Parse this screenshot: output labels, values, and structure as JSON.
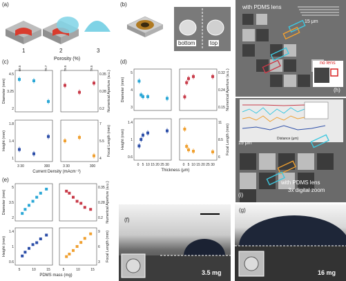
{
  "panels": {
    "a": {
      "label": "(a)",
      "steps": [
        "1",
        "2",
        "3"
      ]
    },
    "b": {
      "label": "(b)",
      "bottom": "bottom",
      "top": "top"
    },
    "c": {
      "label": "(c)",
      "top_axis": "Porosity (%)",
      "x_label": "Current Density (mAcm⁻²)",
      "y_top_left": "Diameter (mm)",
      "y_bot_left": "Height (mm)",
      "y_top_right": "Numerical Aperture (a.u.)",
      "y_bot_right": "Focal Length (mm)",
      "top_ticks": [
        "68.5",
        "78.7",
        "78.5",
        "78.5"
      ],
      "x_ticks": [
        "3 30",
        "300",
        "3 30",
        "300"
      ]
    },
    "d": {
      "label": "(d)",
      "x_label": "Thickness (μm)",
      "y_top_left": "Diameter (mm)",
      "y_bot_left": "Height (mm)",
      "y_top_right": "Numerical Aperture (a.u.)",
      "y_bot_right": "Focal Length (mm)",
      "x_ticks": [
        "0",
        "5",
        "10",
        "15",
        "20",
        "25",
        "30"
      ]
    },
    "e": {
      "label": "(e)",
      "x_label": "PDMS mass (mg)",
      "y_top_left": "Diameter (mm)",
      "y_bot_left": "Height (mm)",
      "y_top_right": "Numerical Aperture (a.u.)",
      "y_bot_right": "Focal Length (mm)",
      "x_ticks": [
        "5",
        "10",
        "15"
      ]
    },
    "f": {
      "label": "(f)",
      "mass": "3.5 mg"
    },
    "g": {
      "label": "(g)",
      "mass": "16 mg"
    },
    "h": {
      "label": "(h)",
      "caption": "with PDMS lens",
      "scale": "15 μm",
      "inset": "no lens"
    },
    "i": {
      "label": "(i)",
      "caption1": "with PDMS lens",
      "caption2": "3x digital zoom",
      "scale": "15 μm",
      "inset_x": "Distance (μm)",
      "inset_y": "Intensity (a.u.)"
    }
  },
  "chart_data": [
    {
      "type": "scatter",
      "panel": "c-top-left",
      "ylabel": "Diameter (mm)",
      "ylim": [
        2.0,
        4.5
      ],
      "series": [
        {
          "color": "#2aa7d6",
          "x": [
            3,
            30,
            300
          ],
          "y": [
            4.1,
            4.0,
            2.5
          ]
        }
      ]
    },
    {
      "type": "scatter",
      "panel": "c-bottom-left",
      "ylabel": "Height (mm)",
      "ylim": [
        1.0,
        1.8
      ],
      "series": [
        {
          "color": "#2c4ea8",
          "x": [
            3,
            30,
            300
          ],
          "y": [
            1.2,
            1.1,
            1.5
          ]
        }
      ]
    },
    {
      "type": "scatter",
      "panel": "c-top-right",
      "ylabel": "Numerical Aperture (a.u.)",
      "ylim": [
        0.2,
        0.35
      ],
      "series": [
        {
          "color": "#c83a48",
          "x": [
            3,
            30,
            300
          ],
          "y": [
            0.3,
            0.27,
            0.31
          ]
        }
      ]
    },
    {
      "type": "scatter",
      "panel": "c-bottom-right",
      "ylabel": "Focal Length (mm)",
      "ylim": [
        4,
        7
      ],
      "series": [
        {
          "color": "#f0a030",
          "x": [
            3,
            30,
            300
          ],
          "y": [
            5.5,
            5.8,
            4.2
          ]
        }
      ]
    },
    {
      "type": "scatter",
      "panel": "d-top-left",
      "ylabel": "Diameter (mm)",
      "ylim": [
        3.0,
        5.0
      ],
      "series": [
        {
          "color": "#2aa7d6",
          "x": [
            1,
            3,
            5,
            10,
            30
          ],
          "y": [
            4.5,
            3.7,
            3.6,
            3.6,
            3.5
          ]
        }
      ]
    },
    {
      "type": "scatter",
      "panel": "d-bottom-left",
      "ylabel": "Height (mm)",
      "ylim": [
        0.6,
        1.4
      ],
      "series": [
        {
          "color": "#2c4ea8",
          "x": [
            1,
            3,
            5,
            10,
            30
          ],
          "y": [
            0.85,
            1.0,
            1.1,
            1.15,
            1.2
          ]
        }
      ]
    },
    {
      "type": "scatter",
      "panel": "d-top-right",
      "ylabel": "Numerical Aperture (a.u.)",
      "ylim": [
        0.15,
        0.32
      ],
      "series": [
        {
          "color": "#c83a48",
          "x": [
            1,
            3,
            5,
            10,
            30
          ],
          "y": [
            0.2,
            0.27,
            0.29,
            0.3,
            0.3
          ]
        }
      ]
    },
    {
      "type": "scatter",
      "panel": "d-bottom-right",
      "ylabel": "Focal Length (mm)",
      "ylim": [
        6,
        11
      ],
      "series": [
        {
          "color": "#f0a030",
          "x": [
            1,
            3,
            5,
            10,
            30
          ],
          "y": [
            10,
            7.5,
            7.0,
            6.8,
            6.7
          ]
        }
      ]
    },
    {
      "type": "scatter",
      "panel": "e-top-left",
      "ylabel": "Diameter (mm)",
      "ylim": [
        2.0,
        5.0
      ],
      "series": [
        {
          "color": "#2aa7d6",
          "x": [
            3.5,
            5,
            7,
            9,
            11,
            13,
            16
          ],
          "y": [
            2.4,
            2.8,
            3.2,
            3.6,
            4.0,
            4.4,
            4.8
          ]
        }
      ]
    },
    {
      "type": "scatter",
      "panel": "e-bottom-left",
      "ylabel": "Height (mm)",
      "ylim": [
        0.6,
        1.4
      ],
      "series": [
        {
          "color": "#2c4ea8",
          "x": [
            3.5,
            5,
            7,
            9,
            11,
            13,
            16
          ],
          "y": [
            0.75,
            0.85,
            0.95,
            1.05,
            1.1,
            1.2,
            1.3
          ]
        }
      ]
    },
    {
      "type": "scatter",
      "panel": "e-top-right",
      "ylabel": "Numerical Aperture (a.u.)",
      "ylim": [
        0.2,
        0.35
      ],
      "series": [
        {
          "color": "#c83a48",
          "x": [
            3.5,
            5,
            7,
            9,
            11,
            13,
            16
          ],
          "y": [
            0.33,
            0.32,
            0.3,
            0.28,
            0.27,
            0.25,
            0.24
          ]
        }
      ]
    },
    {
      "type": "scatter",
      "panel": "e-bottom-right",
      "ylabel": "Focal Length (mm)",
      "ylim": [
        3,
        9
      ],
      "series": [
        {
          "color": "#f0a030",
          "x": [
            3.5,
            5,
            7,
            9,
            11,
            13,
            16
          ],
          "y": [
            4,
            4.5,
            5.2,
            6,
            6.8,
            7.6,
            8.5
          ]
        }
      ]
    }
  ]
}
